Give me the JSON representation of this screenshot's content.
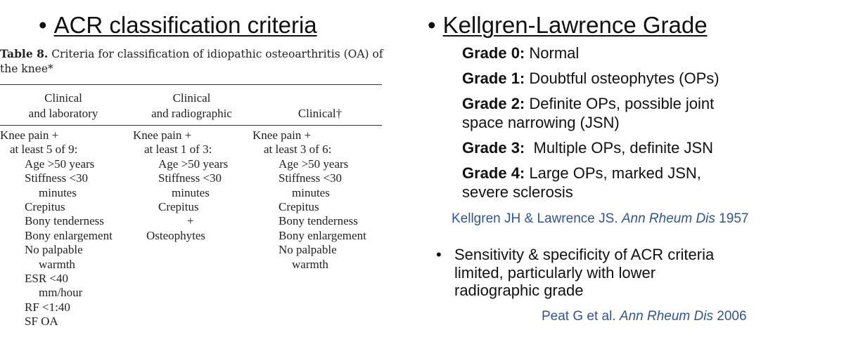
{
  "left": {
    "heading_bullet": "•",
    "heading": "ACR classification criteria",
    "caption_label": "Table 8.",
    "caption_text": " Criteria for classification of idiopathic osteoarthritis (OA) of the knee*",
    "columns": [
      {
        "header": [
          "Clinical",
          "and laboratory"
        ],
        "lines": [
          "Knee pain +",
          "at least 5 of 9:",
          "Age >50 years",
          "Stiffness <30",
          "minutes",
          "Crepitus",
          "Bony tenderness",
          "Bony enlargement",
          "No palpable",
          "warmth",
          "ESR <40",
          "mm/hour",
          "RF <1:40",
          "SF OA"
        ]
      },
      {
        "header": [
          "Clinical",
          "and radiographic"
        ],
        "lines": [
          "Knee pain +",
          "at least 1 of 3:",
          "Age >50 years",
          "Stiffness <30",
          "minutes",
          "Crepitus",
          "+",
          "Osteophytes"
        ]
      },
      {
        "header": [
          "Clinical†"
        ],
        "lines": [
          "Knee pain +",
          "at least 3 of 6:",
          "Age >50 years",
          "Stiffness <30",
          "minutes",
          "Crepitus",
          "Bony tenderness",
          "Bony enlargement",
          "No palpable",
          "warmth"
        ]
      }
    ]
  },
  "right": {
    "heading_bullet": "•",
    "heading": "Kellgren-Lawrence Grade",
    "grades": [
      {
        "label": "Grade 0:",
        "text": " Normal",
        "cont": ""
      },
      {
        "label": "Grade 1:",
        "text": " Doubtful osteophytes (OPs)",
        "cont": ""
      },
      {
        "label": "Grade 2:",
        "text": " Definite OPs, possible joint",
        "cont": "space narrowing (JSN)"
      },
      {
        "label": "Grade 3:",
        "text": "  Multiple OPs, definite JSN",
        "cont": ""
      },
      {
        "label": "Grade 4:",
        "text": " Large OPs, marked JSN,",
        "cont": "severe sclerosis"
      }
    ],
    "citation1": {
      "authors": "Kellgren JH & Lawrence JS. ",
      "journal": "Ann Rheum Dis",
      "year": " 1957"
    },
    "note_bullet": "•",
    "note_lines": [
      "Sensitivity & specificity of ACR criteria",
      "limited, particularly with lower",
      "radiographic grade"
    ],
    "citation2": {
      "authors": "Peat G et al. ",
      "journal": "Ann Rheum Dis",
      "year": " 2006"
    },
    "colors": {
      "citation": "#2f5596",
      "text": "#111111"
    }
  }
}
